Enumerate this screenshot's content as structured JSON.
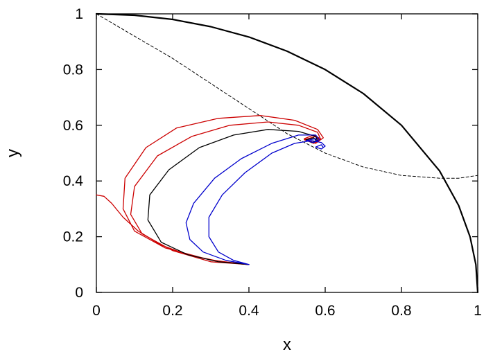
{
  "chart_data": {
    "type": "line",
    "title": "",
    "xlabel": "x",
    "ylabel": "y",
    "xlim": [
      0,
      1
    ],
    "ylim": [
      0,
      1
    ],
    "grid": false,
    "legend": "none",
    "x_ticks": [
      "0",
      "0.2",
      "0.4",
      "0.6",
      "0.8",
      "1"
    ],
    "y_ticks": [
      "0",
      "0.2",
      "0.4",
      "0.6",
      "0.8",
      "1"
    ],
    "series": [
      {
        "color": "#000000",
        "style": "solid",
        "width": 2.2,
        "points": [
          [
            0,
            1
          ],
          [
            0.1,
            0.995
          ],
          [
            0.2,
            0.98
          ],
          [
            0.3,
            0.954
          ],
          [
            0.4,
            0.917
          ],
          [
            0.5,
            0.866
          ],
          [
            0.6,
            0.8
          ],
          [
            0.7,
            0.714
          ],
          [
            0.8,
            0.6
          ],
          [
            0.9,
            0.436
          ],
          [
            0.95,
            0.312
          ],
          [
            0.98,
            0.199
          ],
          [
            0.995,
            0.1
          ],
          [
            1,
            0
          ]
        ]
      },
      {
        "color": "#000000",
        "style": "dashed",
        "width": 1,
        "points": [
          [
            0,
            1
          ],
          [
            0.1,
            0.92
          ],
          [
            0.2,
            0.84
          ],
          [
            0.3,
            0.75
          ],
          [
            0.4,
            0.66
          ],
          [
            0.5,
            0.57
          ],
          [
            0.6,
            0.5
          ],
          [
            0.7,
            0.45
          ],
          [
            0.8,
            0.42
          ],
          [
            0.9,
            0.41
          ],
          [
            0.95,
            0.41
          ],
          [
            1,
            0.42
          ]
        ]
      },
      {
        "color": "#cc0000",
        "style": "solid",
        "width": 1.3,
        "points": [
          [
            0,
            0.35
          ],
          [
            0.02,
            0.345
          ],
          [
            0.04,
            0.32
          ],
          [
            0.07,
            0.27
          ],
          [
            0.11,
            0.22
          ],
          [
            0.17,
            0.17
          ],
          [
            0.24,
            0.135
          ],
          [
            0.31,
            0.115
          ],
          [
            0.38,
            0.102
          ],
          [
            0.4,
            0.1
          ],
          [
            0.3,
            0.116
          ],
          [
            0.18,
            0.16
          ],
          [
            0.1,
            0.22
          ],
          [
            0.07,
            0.3
          ],
          [
            0.075,
            0.41
          ],
          [
            0.13,
            0.52
          ],
          [
            0.21,
            0.59
          ],
          [
            0.32,
            0.625
          ],
          [
            0.43,
            0.635
          ],
          [
            0.52,
            0.618
          ],
          [
            0.58,
            0.585
          ],
          [
            0.595,
            0.555
          ],
          [
            0.575,
            0.535
          ],
          [
            0.545,
            0.552
          ],
          [
            0.57,
            0.565
          ],
          [
            0.59,
            0.55
          ]
        ]
      },
      {
        "color": "#cc0000",
        "style": "solid",
        "width": 1.3,
        "points": [
          [
            0.4,
            0.1
          ],
          [
            0.3,
            0.11
          ],
          [
            0.2,
            0.15
          ],
          [
            0.12,
            0.21
          ],
          [
            0.09,
            0.28
          ],
          [
            0.1,
            0.38
          ],
          [
            0.16,
            0.49
          ],
          [
            0.25,
            0.56
          ],
          [
            0.35,
            0.6
          ],
          [
            0.45,
            0.612
          ],
          [
            0.53,
            0.6
          ],
          [
            0.58,
            0.575
          ],
          [
            0.588,
            0.55
          ],
          [
            0.57,
            0.535
          ],
          [
            0.545,
            0.548
          ],
          [
            0.575,
            0.56
          ],
          [
            0.585,
            0.545
          ]
        ]
      },
      {
        "color": "#000000",
        "style": "solid",
        "width": 1.3,
        "points": [
          [
            0.4,
            0.1
          ],
          [
            0.32,
            0.11
          ],
          [
            0.24,
            0.135
          ],
          [
            0.17,
            0.18
          ],
          [
            0.135,
            0.26
          ],
          [
            0.14,
            0.35
          ],
          [
            0.19,
            0.44
          ],
          [
            0.27,
            0.52
          ],
          [
            0.36,
            0.565
          ],
          [
            0.45,
            0.585
          ],
          [
            0.53,
            0.578
          ],
          [
            0.575,
            0.56
          ],
          [
            0.58,
            0.545
          ],
          [
            0.565,
            0.538
          ],
          [
            0.55,
            0.548
          ],
          [
            0.57,
            0.555
          ],
          [
            0.578,
            0.542
          ]
        ]
      },
      {
        "color": "#0000cc",
        "style": "solid",
        "width": 1.3,
        "points": [
          [
            0.4,
            0.1
          ],
          [
            0.34,
            0.115
          ],
          [
            0.28,
            0.145
          ],
          [
            0.245,
            0.19
          ],
          [
            0.235,
            0.25
          ],
          [
            0.255,
            0.32
          ],
          [
            0.31,
            0.41
          ],
          [
            0.38,
            0.48
          ],
          [
            0.46,
            0.535
          ],
          [
            0.53,
            0.565
          ],
          [
            0.575,
            0.565
          ],
          [
            0.585,
            0.548
          ],
          [
            0.57,
            0.538
          ],
          [
            0.55,
            0.545
          ],
          [
            0.575,
            0.552
          ],
          [
            0.58,
            0.54
          ]
        ]
      },
      {
        "color": "#0000cc",
        "style": "solid",
        "width": 1.3,
        "points": [
          [
            0.4,
            0.1
          ],
          [
            0.36,
            0.115
          ],
          [
            0.32,
            0.145
          ],
          [
            0.295,
            0.2
          ],
          [
            0.295,
            0.27
          ],
          [
            0.33,
            0.35
          ],
          [
            0.39,
            0.43
          ],
          [
            0.46,
            0.5
          ],
          [
            0.52,
            0.535
          ],
          [
            0.565,
            0.545
          ],
          [
            0.59,
            0.538
          ],
          [
            0.6,
            0.525
          ],
          [
            0.59,
            0.515
          ],
          [
            0.575,
            0.522
          ],
          [
            0.59,
            0.53
          ],
          [
            0.595,
            0.52
          ]
        ]
      }
    ]
  }
}
